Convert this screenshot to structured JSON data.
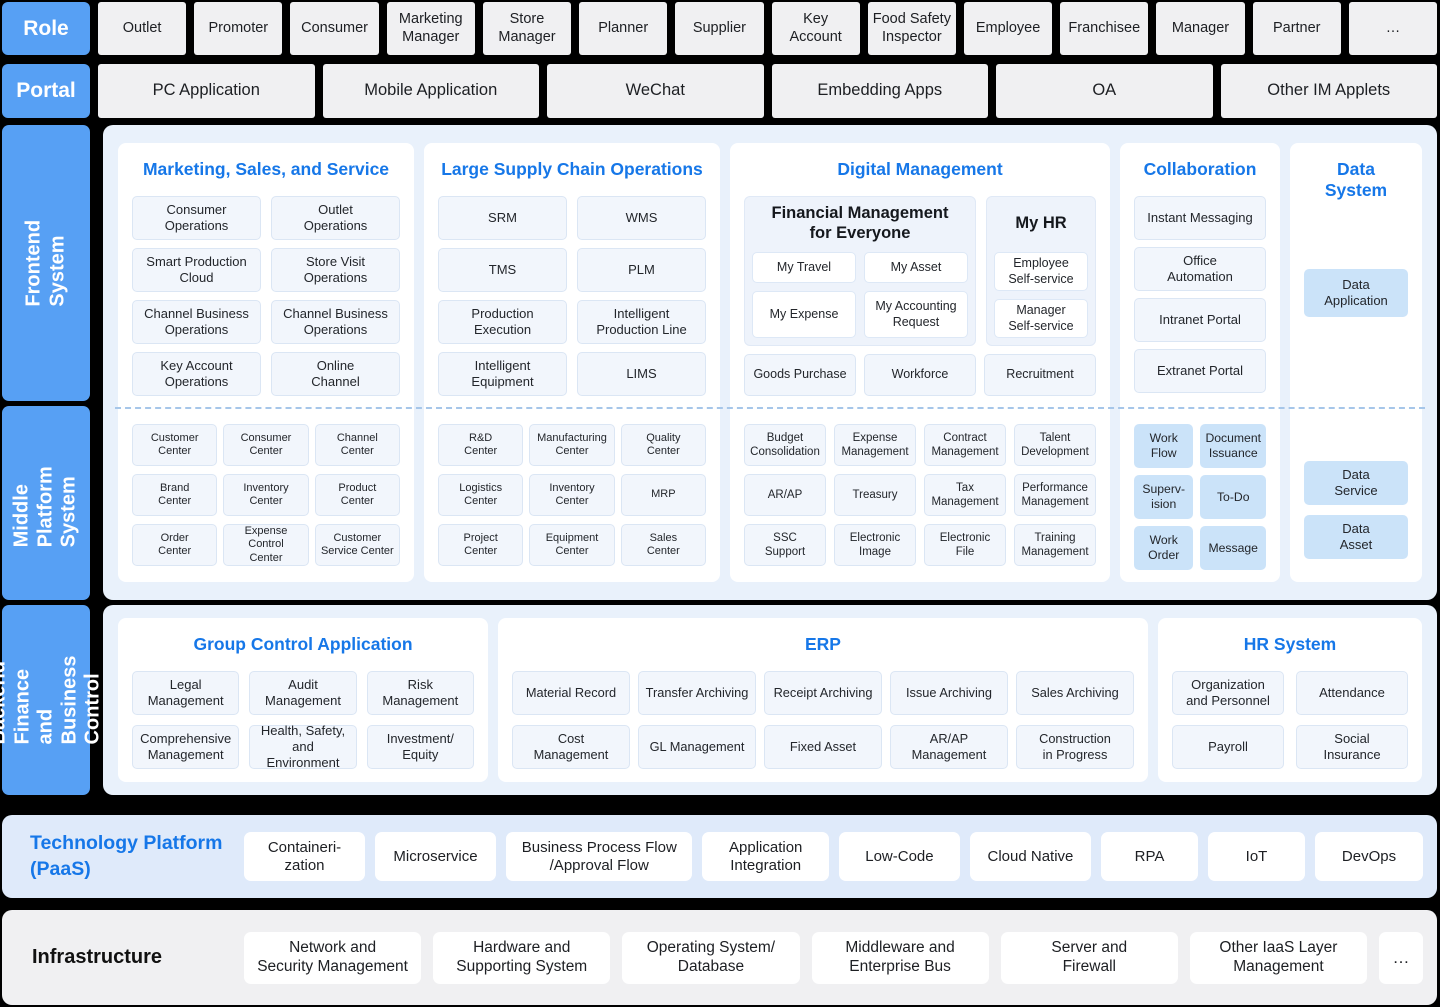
{
  "colors": {
    "accent_blue": "#1677e8",
    "label_blue": "#57a0f4",
    "container_blue": "#e9f1fb",
    "tech_container_blue": "#dfeafa",
    "infra_container_gray": "#f0f0f2",
    "item_light": "#f2f6fc",
    "item_blue": "#cbe3f9"
  },
  "role_row": {
    "label": "Role",
    "items": [
      "Outlet",
      "Promoter",
      "Consumer",
      "Marketing\nManager",
      "Store\nManager",
      "Planner",
      "Supplier",
      "Key\nAccount",
      "Food Safety\nInspector",
      "Employee",
      "Franchisee",
      "Manager",
      "Partner",
      "…"
    ]
  },
  "portal_row": {
    "label": "Portal",
    "items": [
      "PC Application",
      "Mobile Application",
      "WeChat",
      "Embedding Apps",
      "OA",
      "Other IM Applets"
    ]
  },
  "frontend": {
    "label": "Frontend System",
    "middle_label": "Middle Platform\nSystem",
    "marketing": {
      "title": "Marketing, Sales, and Service",
      "top_items": [
        "Consumer\nOperations",
        "Outlet\nOperations",
        "Smart Production\nCloud",
        "Store Visit\nOperations",
        "Channel Business\nOperations",
        "Channel Business\nOperations",
        "Key Account\nOperations",
        "Online\nChannel"
      ],
      "middle_items": [
        "Customer\nCenter",
        "Consumer\nCenter",
        "Channel\nCenter",
        "Brand\nCenter",
        "Inventory\nCenter",
        "Product\nCenter",
        "Order\nCenter",
        "Expense Control\nCenter",
        "Customer\nService Center"
      ]
    },
    "supply": {
      "title": "Large Supply Chain Operations",
      "top_items": [
        "SRM",
        "WMS",
        "TMS",
        "PLM",
        "Production\nExecution",
        "Intelligent\nProduction Line",
        "Intelligent\nEquipment",
        "LIMS"
      ],
      "middle_items": [
        "R&D\nCenter",
        "Manufacturing\nCenter",
        "Quality\nCenter",
        "Logistics\nCenter",
        "Inventory\nCenter",
        "MRP",
        "Project\nCenter",
        "Equipment\nCenter",
        "Sales\nCenter"
      ]
    },
    "digital": {
      "title": "Digital Management",
      "financial": {
        "title": "Financial Management\nfor Everyone",
        "items": [
          "My Travel",
          "My Asset",
          "My Expense",
          "My Accounting\nRequest"
        ]
      },
      "my_hr": {
        "title": "My HR",
        "items": [
          "Employee\nSelf-service",
          "Manager\nSelf-service"
        ]
      },
      "extra_items": [
        "Goods Purchase",
        "Workforce",
        "Recruitment"
      ],
      "middle_items": [
        "Budget\nConsolidation",
        "Expense\nManagement",
        "Contract\nManagement",
        "Talent\nDevelopment",
        "AR/AP",
        "Treasury",
        "Tax\nManagement",
        "Performance\nManagement",
        "SSC\nSupport",
        "Electronic\nImage",
        "Electronic\nFile",
        "Training\nManagement"
      ]
    },
    "collaboration": {
      "title": "Collaboration",
      "top_items": [
        "Instant Messaging",
        "Office\nAutomation",
        "Intranet Portal",
        "Extranet Portal"
      ],
      "middle_items": [
        "Work\nFlow",
        "Document\nIssuance",
        "Superv-\nision",
        "To-Do",
        "Work\nOrder",
        "Message"
      ]
    },
    "data_system": {
      "title": "Data\nSystem",
      "top_items": [
        "Data\nApplication"
      ],
      "middle_items": [
        "Data\nService",
        "Data\nAsset"
      ]
    }
  },
  "backend": {
    "label": "Backend Finance\nand\nBusiness Control",
    "group_control": {
      "title": "Group Control Application",
      "items": [
        "Legal\nManagement",
        "Audit\nManagement",
        "Risk\nManagement",
        "Comprehensive\nManagement",
        "Health, Safety,\nand Environment",
        "Investment/\nEquity"
      ]
    },
    "erp": {
      "title": "ERP",
      "items": [
        "Material Record",
        "Transfer Archiving",
        "Receipt Archiving",
        "Issue Archiving",
        "Sales Archiving",
        "Cost\nManagement",
        "GL Management",
        "Fixed Asset",
        "AR/AP\nManagement",
        "Construction\nin Progress"
      ]
    },
    "hr_system": {
      "title": "HR System",
      "items": [
        "Organization\nand Personnel",
        "Attendance",
        "Payroll",
        "Social\nInsurance"
      ]
    }
  },
  "technology": {
    "title": "Technology Platform\n(PaaS)",
    "items": [
      "Containeri-\nzation",
      "Microservice",
      "Business Process Flow\n/Approval Flow",
      "Application\nIntegration",
      "Low-Code",
      "Cloud Native",
      "RPA",
      "IoT",
      "DevOps"
    ]
  },
  "infrastructure": {
    "title": "Infrastructure",
    "items": [
      "Network and\nSecurity Management",
      "Hardware and\nSupporting System",
      "Operating System/\nDatabase",
      "Middleware and\nEnterprise Bus",
      "Server and\nFirewall",
      "Other IaaS Layer\nManagement"
    ],
    "more": "…"
  }
}
